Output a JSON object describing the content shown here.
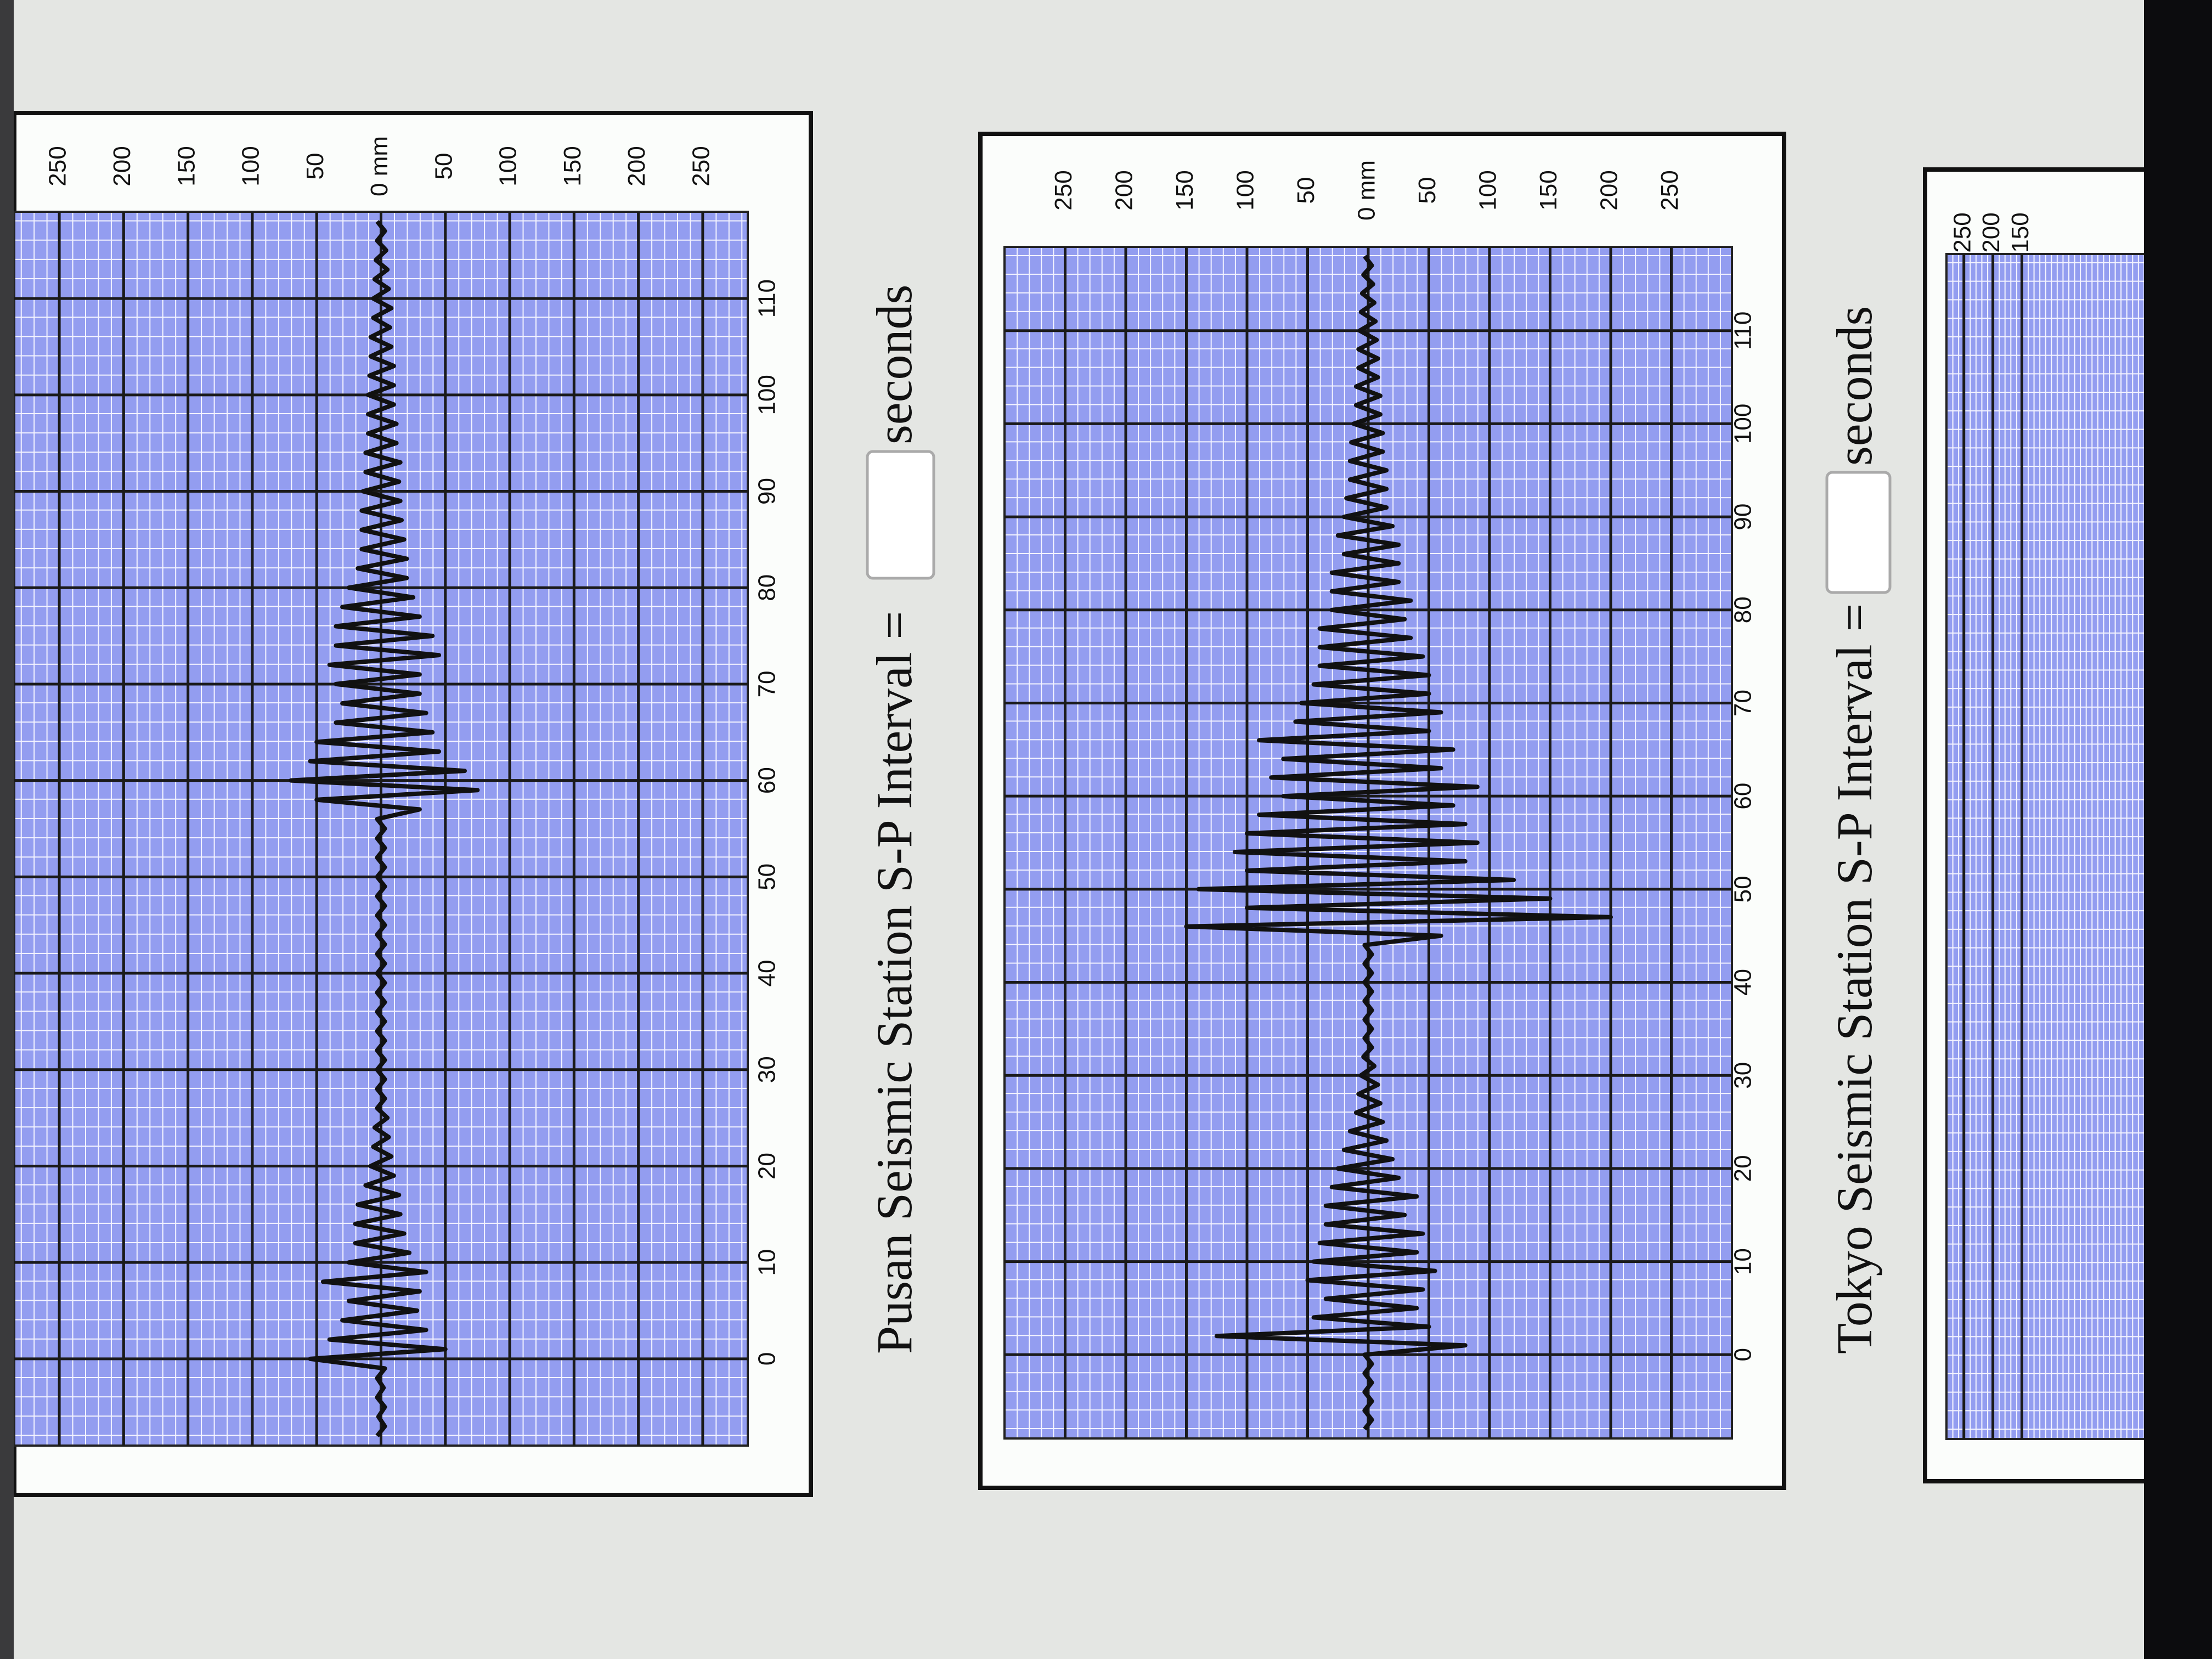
{
  "chart_data": [
    {
      "type": "line",
      "x": [
        -8,
        -7,
        -6,
        -5,
        -4,
        -3,
        -2,
        -1,
        0,
        1,
        2,
        3,
        4,
        5,
        6,
        7,
        8,
        9,
        10,
        11,
        12,
        13,
        14,
        15,
        16,
        17,
        18,
        19,
        20,
        21,
        22,
        23,
        24,
        25,
        26,
        27,
        28,
        29,
        30,
        31,
        32,
        33,
        34,
        35,
        36,
        37,
        38,
        39,
        40,
        41,
        42,
        43,
        44,
        45,
        46,
        47,
        48,
        49,
        50,
        51,
        52,
        53,
        54,
        55,
        56,
        57,
        58,
        59,
        60,
        61,
        62,
        63,
        64,
        65,
        66,
        67,
        68,
        69,
        70,
        71,
        72,
        73,
        74,
        75,
        76,
        77,
        78,
        79,
        80,
        81,
        82,
        83,
        84,
        85,
        86,
        87,
        88,
        89,
        90,
        91,
        92,
        93,
        94,
        95,
        96,
        97,
        98,
        99,
        100,
        101,
        102,
        103,
        104,
        105,
        106,
        107,
        108,
        109,
        110,
        111,
        112,
        113,
        114,
        115,
        116,
        117,
        118
      ],
      "values": [
        3,
        -3,
        2,
        -3,
        3,
        -2,
        3,
        -3,
        55,
        -50,
        40,
        -35,
        30,
        -28,
        25,
        -30,
        45,
        -35,
        25,
        -22,
        20,
        -18,
        20,
        -15,
        18,
        -14,
        12,
        -10,
        8,
        -8,
        6,
        -6,
        5,
        -5,
        3,
        -3,
        3,
        -3,
        3,
        -3,
        3,
        -3,
        3,
        -3,
        3,
        -3,
        3,
        -3,
        3,
        -3,
        3,
        -3,
        3,
        -3,
        3,
        -3,
        3,
        -3,
        3,
        -3,
        3,
        -3,
        3,
        -3,
        3,
        -30,
        50,
        -75,
        70,
        -65,
        55,
        -45,
        50,
        -40,
        35,
        -35,
        30,
        -30,
        35,
        -30,
        40,
        -45,
        35,
        -40,
        35,
        -30,
        30,
        -25,
        25,
        -20,
        18,
        -20,
        15,
        -18,
        15,
        -16,
        15,
        -15,
        14,
        -14,
        12,
        -15,
        12,
        -12,
        10,
        -12,
        10,
        -10,
        10,
        -10,
        9,
        -10,
        8,
        -8,
        8,
        -7,
        6,
        -8,
        6,
        -6,
        5,
        -5,
        4,
        -4,
        3,
        -3,
        3
      ],
      "color": "#111111",
      "xlim": [
        -9,
        119
      ],
      "xticks": [
        0,
        10,
        20,
        30,
        40,
        50,
        60,
        70,
        80,
        90,
        100,
        110
      ],
      "ylim": [
        -285,
        285
      ],
      "yticks": [
        250,
        200,
        150,
        100,
        50,
        {
          "value": 0,
          "label": "0 mm"
        },
        {
          "value": -50,
          "label": "50"
        },
        {
          "value": -100,
          "label": "100"
        },
        {
          "value": -150,
          "label": "150"
        },
        {
          "value": -200,
          "label": "200"
        },
        {
          "value": -250,
          "label": "250"
        }
      ],
      "grid": true
    },
    {
      "type": "line",
      "x": [
        -8,
        -7,
        -6,
        -5,
        -4,
        -3,
        -2,
        -1,
        0,
        1,
        2,
        3,
        4,
        5,
        6,
        7,
        8,
        9,
        10,
        11,
        12,
        13,
        14,
        15,
        16,
        17,
        18,
        19,
        20,
        21,
        22,
        23,
        24,
        25,
        26,
        27,
        28,
        29,
        30,
        31,
        32,
        33,
        34,
        35,
        36,
        37,
        38,
        39,
        40,
        41,
        42,
        43,
        44,
        45,
        46,
        47,
        48,
        49,
        50,
        51,
        52,
        53,
        54,
        55,
        56,
        57,
        58,
        59,
        60,
        61,
        62,
        63,
        64,
        65,
        66,
        67,
        68,
        69,
        70,
        71,
        72,
        73,
        74,
        75,
        76,
        77,
        78,
        79,
        80,
        81,
        82,
        83,
        84,
        85,
        86,
        87,
        88,
        89,
        90,
        91,
        92,
        93,
        94,
        95,
        96,
        97,
        98,
        99,
        100,
        101,
        102,
        103,
        104,
        105,
        106,
        107,
        108,
        109,
        110,
        111,
        112,
        113,
        114,
        115,
        116,
        117,
        118
      ],
      "values": [
        3,
        -3,
        3,
        -3,
        3,
        -3,
        3,
        -3,
        3,
        -80,
        125,
        -50,
        45,
        -40,
        35,
        -45,
        50,
        -55,
        45,
        -40,
        40,
        -45,
        35,
        -30,
        35,
        -40,
        30,
        -25,
        25,
        -20,
        20,
        -15,
        15,
        -12,
        10,
        -10,
        8,
        -8,
        6,
        -5,
        4,
        -3,
        3,
        -3,
        3,
        -3,
        3,
        -3,
        3,
        -3,
        3,
        -3,
        3,
        -60,
        150,
        -200,
        100,
        -150,
        140,
        -120,
        100,
        -80,
        110,
        -90,
        100,
        -80,
        90,
        -70,
        70,
        -90,
        80,
        -60,
        70,
        -70,
        90,
        -50,
        60,
        -60,
        55,
        -50,
        45,
        -50,
        40,
        -45,
        40,
        -35,
        40,
        -30,
        30,
        -35,
        30,
        -25,
        30,
        -25,
        20,
        -25,
        25,
        -20,
        20,
        -15,
        18,
        -15,
        15,
        -15,
        15,
        -12,
        14,
        -12,
        12,
        -10,
        10,
        -10,
        10,
        -8,
        8,
        -8,
        8,
        -7,
        7,
        -6,
        6,
        -5,
        5,
        -4,
        4,
        -3,
        3
      ],
      "color": "#111111",
      "xlim": [
        -9,
        119
      ],
      "xticks": [
        0,
        10,
        20,
        30,
        40,
        50,
        60,
        70,
        80,
        90,
        100,
        110
      ],
      "ylim": [
        -300,
        300
      ],
      "yticks": [
        250,
        200,
        150,
        100,
        50,
        {
          "value": 0,
          "label": "0 mm"
        },
        {
          "value": -50,
          "label": "50"
        },
        {
          "value": -100,
          "label": "100"
        },
        {
          "value": -150,
          "label": "150"
        },
        {
          "value": -200,
          "label": "200"
        },
        {
          "value": -250,
          "label": "250"
        }
      ],
      "grid": true
    },
    {
      "type": "line",
      "xlim": [
        -9,
        119
      ],
      "ylim": [
        -280,
        280
      ],
      "yticks": [
        250,
        200,
        150
      ],
      "grid": true
    }
  ],
  "form": {
    "pusan_label": "Pusan Seismic Station S-P Interval =",
    "pusan_unit": "seconds",
    "tokyo_label": "Tokyo Seismic Station S-P Interval =",
    "tokyo_unit": "seconds"
  }
}
